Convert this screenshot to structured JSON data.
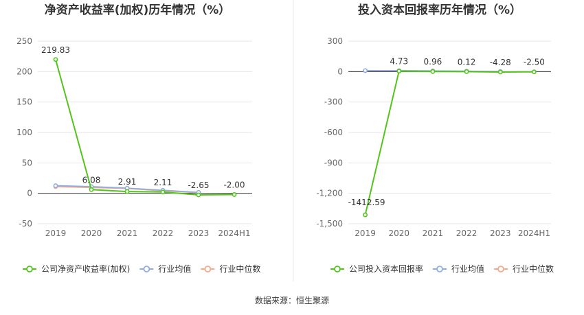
{
  "source_text": "数据来源：恒生聚源",
  "colors": {
    "company": "#52c41a",
    "industry_avg": "#91acdf",
    "industry_median": "#f4a988",
    "grid": "#e6e6e6",
    "axis": "#333333",
    "divider": "#e8e8e8"
  },
  "chart_data": [
    {
      "type": "line",
      "title": "净资产收益率(加权)历年情况（%）",
      "categories": [
        "2019",
        "2020",
        "2021",
        "2022",
        "2023",
        "2024H1"
      ],
      "ylim": [
        -50,
        250
      ],
      "yticks": [
        -50,
        0,
        50,
        100,
        150,
        200,
        250
      ],
      "ytick_labels": [
        "-50",
        "0",
        "50",
        "100",
        "150",
        "200",
        "250"
      ],
      "grid": true,
      "legend_position": "bottom",
      "series": [
        {
          "name": "公司净资产收益率(加权)",
          "color_key": "company",
          "values": [
            219.83,
            6.08,
            2.91,
            2.11,
            -2.65,
            -2.0
          ],
          "labels": [
            "219.83",
            "6.08",
            "2.91",
            "2.11",
            "-2.65",
            "-2.00"
          ]
        },
        {
          "name": "行业均值",
          "color_key": "industry_avg",
          "values": [
            12.5,
            11.0,
            8.5,
            5.0,
            1.5,
            null
          ]
        },
        {
          "name": "行业中位数",
          "color_key": "industry_median",
          "values": [
            11.0,
            9.5,
            8.0,
            4.0,
            1.0,
            null
          ]
        }
      ]
    },
    {
      "type": "line",
      "title": "投入资本回报率历年情况（%）",
      "categories": [
        "2019",
        "2020",
        "2021",
        "2022",
        "2023",
        "2024H1"
      ],
      "ylim": [
        -1500,
        300
      ],
      "yticks": [
        -1500,
        -1200,
        -900,
        -600,
        -300,
        0,
        300
      ],
      "ytick_labels": [
        "-1,500",
        "-1,200",
        "-900",
        "-600",
        "-300",
        "0",
        "300"
      ],
      "grid": true,
      "legend_position": "bottom",
      "series": [
        {
          "name": "公司投入资本回报率",
          "color_key": "company",
          "values": [
            -1412.59,
            4.73,
            0.96,
            0.12,
            -4.28,
            -2.5
          ],
          "labels": [
            "-1412.59",
            "4.73",
            "0.96",
            "0.12",
            "-4.28",
            "-2.50"
          ]
        },
        {
          "name": "行业均值",
          "color_key": "industry_avg",
          "values": [
            10.0,
            9.0,
            7.0,
            4.0,
            1.0,
            null
          ]
        },
        {
          "name": "行业中位数",
          "color_key": "industry_median",
          "values": [
            9.0,
            8.0,
            6.5,
            3.5,
            0.5,
            null
          ]
        }
      ]
    }
  ]
}
